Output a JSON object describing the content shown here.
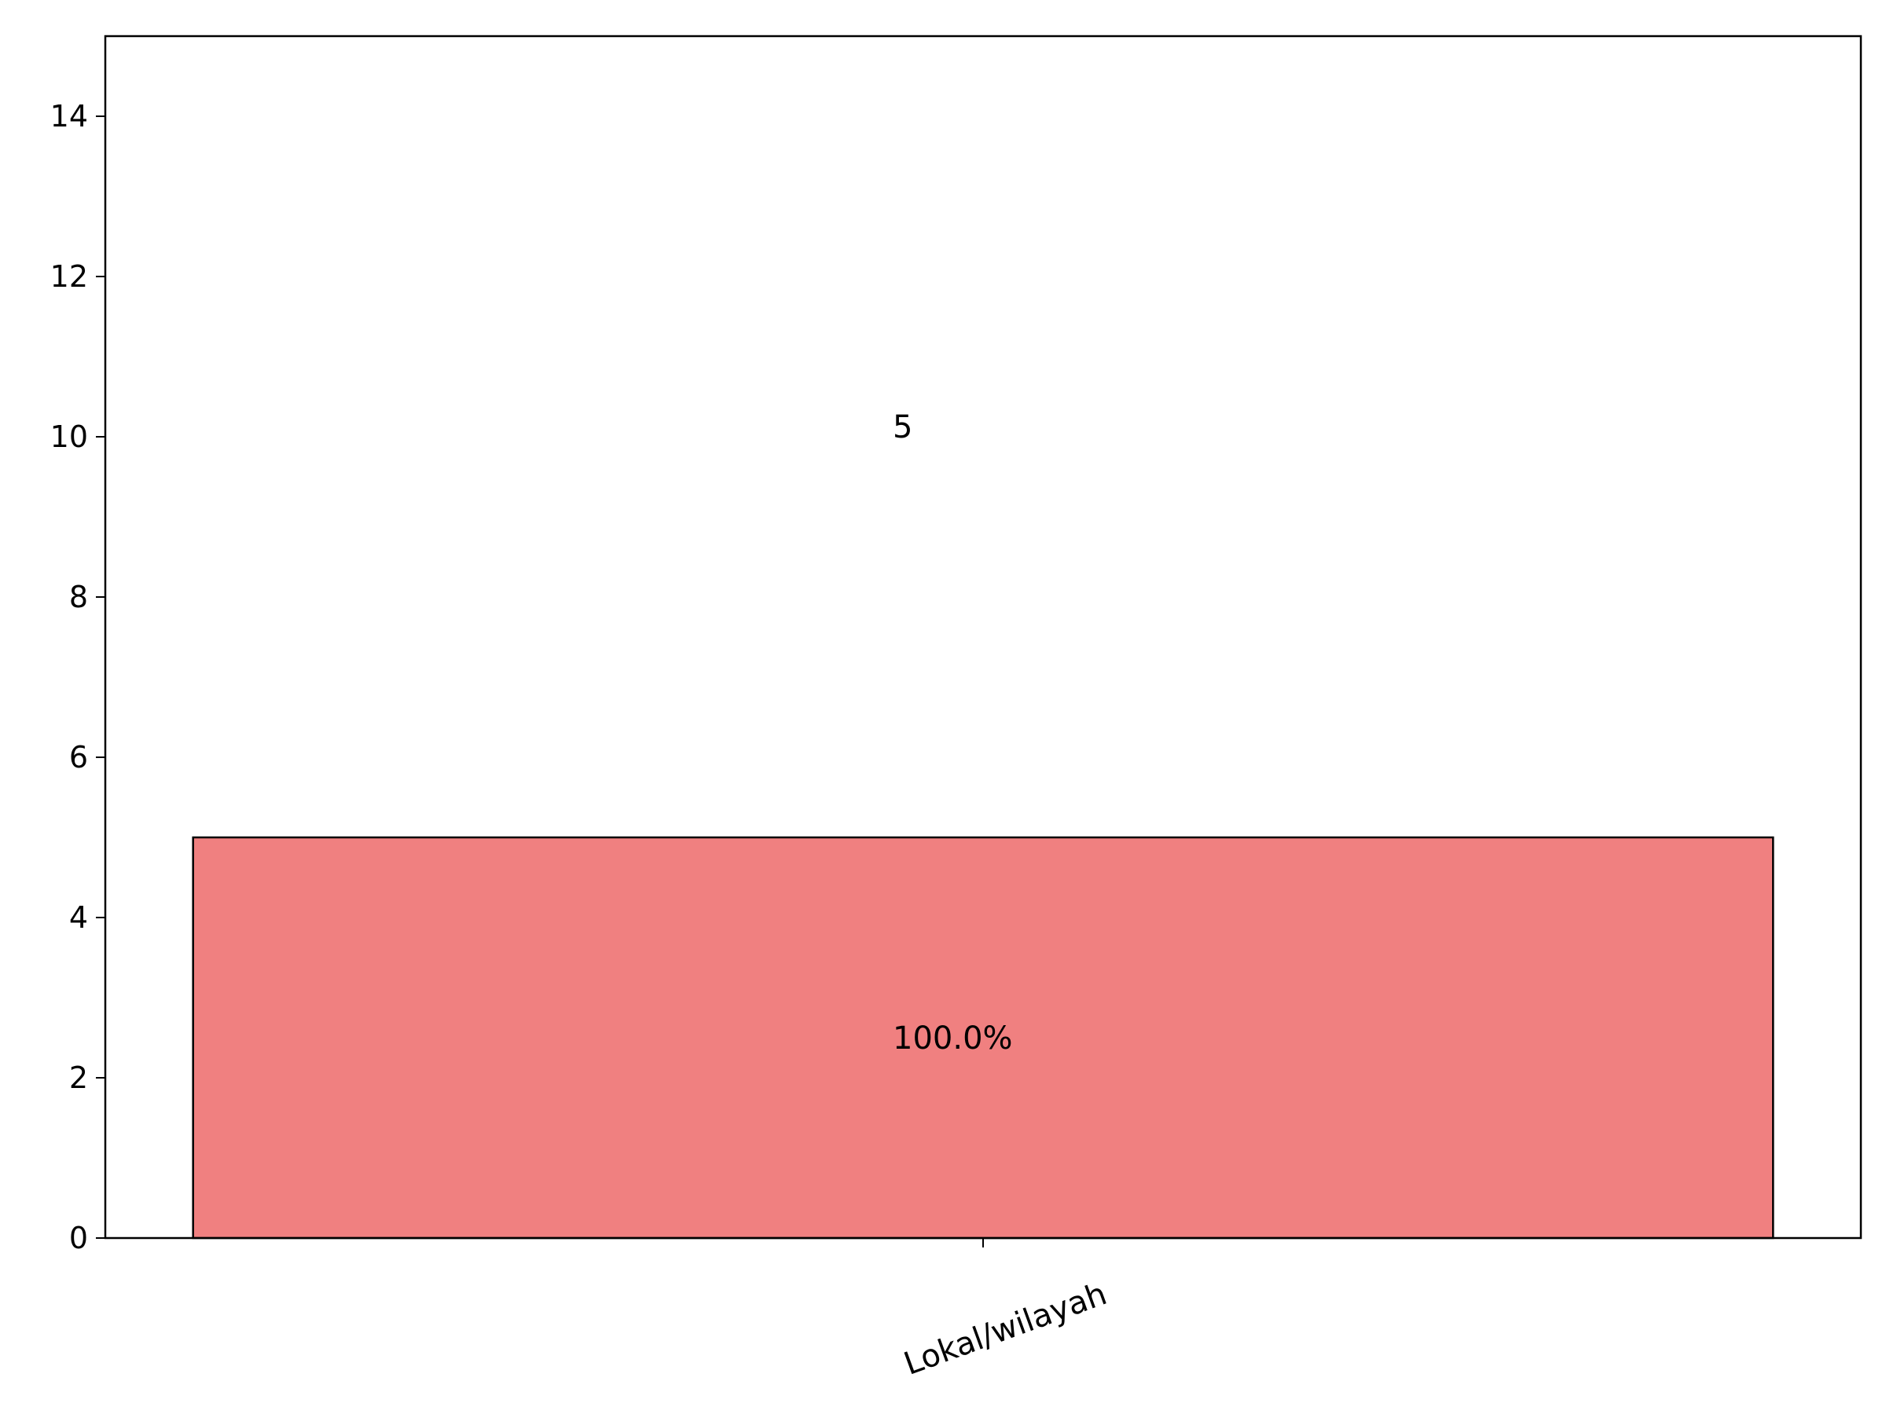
{
  "chart_data": {
    "type": "bar",
    "categories": [
      "Lokal/wilayah"
    ],
    "values": [
      5
    ],
    "bar_labels_above": [
      "5"
    ],
    "bar_labels_inside": [
      "100.0%"
    ],
    "title": "",
    "xlabel": "",
    "ylabel": "",
    "ylim": [
      0,
      15
    ],
    "yticks": [
      0,
      2,
      4,
      6,
      8,
      10,
      12,
      14
    ],
    "ytick_labels": [
      "0",
      "2",
      "4",
      "6",
      "8",
      "10",
      "12",
      "14"
    ],
    "grid": false,
    "legend": "none",
    "colors": {
      "bar": "#f08080",
      "edge": "#000000"
    }
  }
}
